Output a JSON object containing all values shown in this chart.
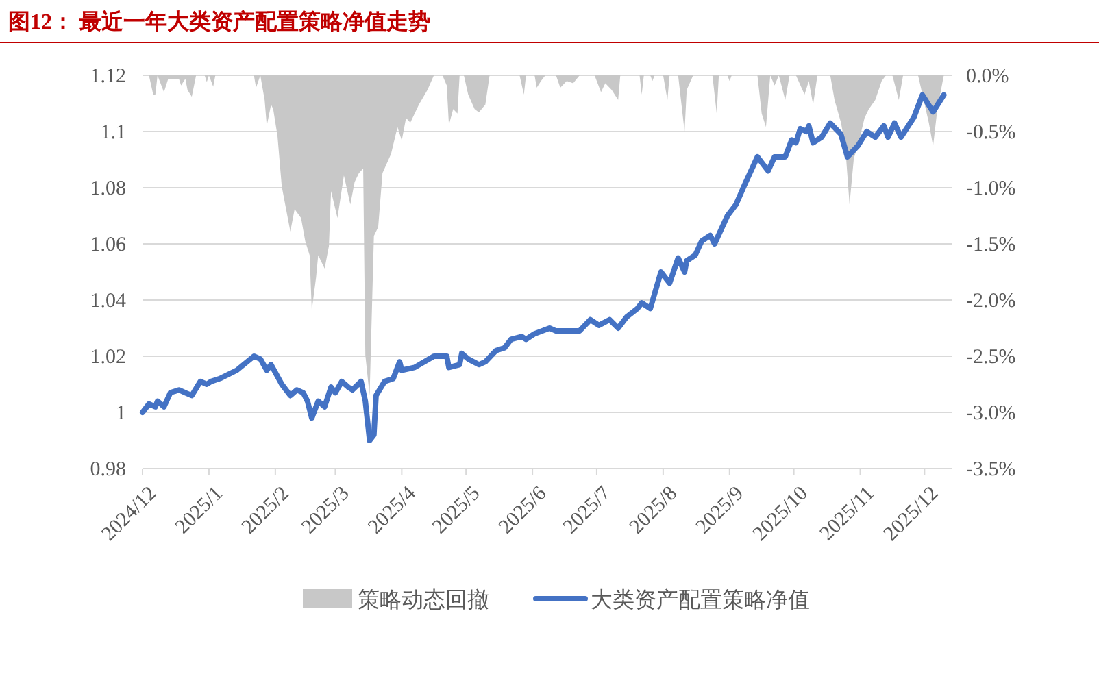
{
  "chart_data": {
    "type": "line",
    "title": "图12：  最近一年大类资产配置策略净值走势",
    "xlim": [
      "2024-12-01",
      "2025-12-14"
    ],
    "xticks": [
      {
        "value": "2024-12-01",
        "label": "2024/12"
      },
      {
        "value": "2025-01-01",
        "label": "2025/1"
      },
      {
        "value": "2025-02-01",
        "label": "2025/2"
      },
      {
        "value": "2025-03-01",
        "label": "2025/3"
      },
      {
        "value": "2025-04-01",
        "label": "2025/4"
      },
      {
        "value": "2025-05-01",
        "label": "2025/5"
      },
      {
        "value": "2025-06-01",
        "label": "2025/6"
      },
      {
        "value": "2025-07-01",
        "label": "2025/7"
      },
      {
        "value": "2025-08-01",
        "label": "2025/8"
      },
      {
        "value": "2025-09-01",
        "label": "2025/9"
      },
      {
        "value": "2025-10-01",
        "label": "2025/10"
      },
      {
        "value": "2025-11-01",
        "label": "2025/11"
      },
      {
        "value": "2025-12-01",
        "label": "2025/12"
      }
    ],
    "ylim": [
      0.98,
      1.12
    ],
    "yticks": [
      0.98,
      1,
      1.02,
      1.04,
      1.06,
      1.08,
      1.1,
      1.12
    ],
    "y2lim": [
      -3.5,
      0
    ],
    "y2ticks": [
      {
        "value": -3.5,
        "label": "-3.5%"
      },
      {
        "value": -3,
        "label": "-3.0%"
      },
      {
        "value": -2.5,
        "label": "-2.5%"
      },
      {
        "value": -2,
        "label": "-2.0%"
      },
      {
        "value": -1.5,
        "label": "-1.5%"
      },
      {
        "value": -1,
        "label": "-1.0%"
      },
      {
        "value": -0.5,
        "label": "-0.5%"
      },
      {
        "value": 0,
        "label": "0.0%"
      }
    ],
    "grid": "y",
    "legend": "bottom",
    "marker": "none",
    "line_style": "solid",
    "series": [
      {
        "name": "策略动态回撤",
        "type": "area",
        "axis": "y2",
        "color": "#c8c8c8",
        "x": [
          "2024-12-01",
          "2024-12-04",
          "2024-12-06",
          "2024-12-07",
          "2024-12-08",
          "2024-12-11",
          "2024-12-13",
          "2024-12-18",
          "2024-12-19",
          "2024-12-21",
          "2024-12-22",
          "2024-12-24",
          "2024-12-26",
          "2024-12-30",
          "2024-12-31",
          "2025-01-01",
          "2025-01-03",
          "2025-01-04",
          "2025-01-22",
          "2025-01-23",
          "2025-01-25",
          "2025-01-27",
          "2025-01-28",
          "2025-01-30",
          "2025-01-31",
          "2025-02-02",
          "2025-02-04",
          "2025-02-08",
          "2025-02-10",
          "2025-02-13",
          "2025-02-15",
          "2025-02-17",
          "2025-02-18",
          "2025-02-20",
          "2025-02-21",
          "2025-02-24",
          "2025-02-26",
          "2025-02-27",
          "2025-03-02",
          "2025-03-05",
          "2025-03-08",
          "2025-03-10",
          "2025-03-12",
          "2025-03-14",
          "2025-03-15",
          "2025-03-17",
          "2025-03-19",
          "2025-03-21",
          "2025-03-23",
          "2025-03-27",
          "2025-03-30",
          "2025-04-01",
          "2025-04-03",
          "2025-04-05",
          "2025-04-09",
          "2025-04-13",
          "2025-04-16",
          "2025-04-20",
          "2025-04-22",
          "2025-04-23",
          "2025-04-25",
          "2025-04-27",
          "2025-04-28",
          "2025-04-30",
          "2025-05-02",
          "2025-05-05",
          "2025-05-07",
          "2025-05-10",
          "2025-05-12",
          "2025-05-26",
          "2025-05-28",
          "2025-05-29",
          "2025-06-02",
          "2025-06-03",
          "2025-06-05",
          "2025-06-07",
          "2025-06-12",
          "2025-06-14",
          "2025-06-17",
          "2025-06-20",
          "2025-06-23",
          "2025-06-30",
          "2025-07-03",
          "2025-07-05",
          "2025-07-08",
          "2025-07-11",
          "2025-07-12",
          "2025-07-21",
          "2025-07-22",
          "2025-07-23",
          "2025-07-26",
          "2025-07-27",
          "2025-07-28",
          "2025-08-01",
          "2025-08-03",
          "2025-08-04",
          "2025-08-08",
          "2025-08-11",
          "2025-08-12",
          "2025-08-15",
          "2025-08-24",
          "2025-08-26",
          "2025-08-27",
          "2025-08-31",
          "2025-09-01",
          "2025-09-02",
          "2025-09-14",
          "2025-09-16",
          "2025-09-18",
          "2025-09-20",
          "2025-09-22",
          "2025-09-24",
          "2025-09-27",
          "2025-09-29",
          "2025-10-02",
          "2025-10-06",
          "2025-10-08",
          "2025-10-10",
          "2025-10-12",
          "2025-10-18",
          "2025-10-20",
          "2025-10-23",
          "2025-10-25",
          "2025-10-27",
          "2025-10-29",
          "2025-10-31",
          "2025-11-03",
          "2025-11-05",
          "2025-11-08",
          "2025-11-11",
          "2025-11-13",
          "2025-11-16",
          "2025-11-19",
          "2025-11-21",
          "2025-11-28",
          "2025-12-03",
          "2025-12-05",
          "2025-12-07",
          "2025-12-10"
        ],
        "values": [
          0,
          0,
          -0.17,
          -0.17,
          0,
          -0.15,
          -0.03,
          -0.03,
          -0.09,
          -0.03,
          -0.13,
          -0.19,
          0,
          0,
          -0.06,
          0,
          -0.1,
          0,
          0,
          -0.11,
          0,
          -0.22,
          -0.45,
          -0.26,
          -0.3,
          -0.54,
          -0.99,
          -1.39,
          -1.19,
          -1.27,
          -1.48,
          -1.6,
          -2.09,
          -1.8,
          -1.6,
          -1.72,
          -1.52,
          -1.03,
          -1.27,
          -0.89,
          -1.15,
          -0.95,
          -0.87,
          -0.83,
          -2.49,
          -2.85,
          -1.43,
          -1.35,
          -0.87,
          -0.7,
          -0.46,
          -0.58,
          -0.38,
          -0.42,
          -0.26,
          -0.13,
          0,
          0,
          -0.09,
          -0.44,
          -0.3,
          -0.34,
          0,
          0,
          -0.17,
          -0.3,
          -0.33,
          -0.26,
          0,
          0,
          -0.17,
          0,
          0,
          -0.11,
          -0.05,
          0,
          0,
          -0.11,
          -0.05,
          -0.07,
          0,
          0,
          -0.15,
          -0.07,
          -0.13,
          -0.22,
          0,
          0,
          -0.17,
          0,
          0,
          -0.05,
          0,
          0,
          -0.22,
          0,
          0,
          -0.5,
          -0.13,
          0,
          0,
          -0.34,
          0,
          0,
          -0.05,
          0,
          0,
          -0.34,
          -0.46,
          0,
          -0.09,
          0,
          -0.22,
          0,
          0,
          -0.17,
          -0.05,
          -0.26,
          0,
          0,
          -0.22,
          -0.42,
          -0.63,
          -1.15,
          -0.74,
          -0.62,
          -0.38,
          -0.3,
          -0.22,
          -0.05,
          0,
          0,
          -0.22,
          0,
          0,
          -0.42,
          -0.63,
          -0.3,
          0
        ]
      },
      {
        "name": "大类资产配置策略净值",
        "color": "#4472c4",
        "x": [
          "2024-12-01",
          "2024-12-04",
          "2024-12-07",
          "2024-12-08",
          "2024-12-11",
          "2024-12-14",
          "2024-12-18",
          "2024-12-21",
          "2024-12-24",
          "2024-12-28",
          "2024-12-31",
          "2025-01-02",
          "2025-01-06",
          "2025-01-14",
          "2025-01-22",
          "2025-01-25",
          "2025-01-28",
          "2025-01-30",
          "2025-02-04",
          "2025-02-08",
          "2025-02-11",
          "2025-02-14",
          "2025-02-16",
          "2025-02-18",
          "2025-02-21",
          "2025-02-24",
          "2025-02-27",
          "2025-03-01",
          "2025-03-04",
          "2025-03-07",
          "2025-03-09",
          "2025-03-13",
          "2025-03-15",
          "2025-03-17",
          "2025-03-19",
          "2025-03-20",
          "2025-03-24",
          "2025-03-28",
          "2025-03-31",
          "2025-04-01",
          "2025-04-07",
          "2025-04-16",
          "2025-04-22",
          "2025-04-23",
          "2025-04-28",
          "2025-04-29",
          "2025-05-02",
          "2025-05-07",
          "2025-05-10",
          "2025-05-15",
          "2025-05-19",
          "2025-05-22",
          "2025-05-27",
          "2025-05-29",
          "2025-06-02",
          "2025-06-09",
          "2025-06-12",
          "2025-06-23",
          "2025-06-28",
          "2025-07-02",
          "2025-07-07",
          "2025-07-11",
          "2025-07-15",
          "2025-07-20",
          "2025-07-22",
          "2025-07-26",
          "2025-07-31",
          "2025-08-04",
          "2025-08-08",
          "2025-08-11",
          "2025-08-12",
          "2025-08-16",
          "2025-08-19",
          "2025-08-23",
          "2025-08-25",
          "2025-08-31",
          "2025-09-04",
          "2025-09-08",
          "2025-09-14",
          "2025-09-16",
          "2025-09-19",
          "2025-09-22",
          "2025-09-27",
          "2025-09-30",
          "2025-10-02",
          "2025-10-04",
          "2025-10-07",
          "2025-10-08",
          "2025-10-10",
          "2025-10-14",
          "2025-10-18",
          "2025-10-23",
          "2025-10-26",
          "2025-10-31",
          "2025-11-04",
          "2025-11-08",
          "2025-11-12",
          "2025-11-14",
          "2025-11-17",
          "2025-11-20",
          "2025-11-26",
          "2025-11-30",
          "2025-12-05",
          "2025-12-10"
        ],
        "values": [
          1.0,
          1.003,
          1.002,
          1.004,
          1.002,
          1.007,
          1.008,
          1.007,
          1.006,
          1.011,
          1.01,
          1.011,
          1.012,
          1.015,
          1.02,
          1.019,
          1.015,
          1.017,
          1.01,
          1.006,
          1.008,
          1.007,
          1.004,
          0.998,
          1.004,
          1.002,
          1.009,
          1.007,
          1.011,
          1.009,
          1.008,
          1.011,
          1.004,
          0.99,
          0.992,
          1.006,
          1.011,
          1.012,
          1.018,
          1.015,
          1.016,
          1.02,
          1.02,
          1.016,
          1.017,
          1.021,
          1.019,
          1.017,
          1.018,
          1.022,
          1.023,
          1.026,
          1.027,
          1.026,
          1.028,
          1.03,
          1.029,
          1.029,
          1.033,
          1.031,
          1.033,
          1.03,
          1.034,
          1.037,
          1.039,
          1.037,
          1.05,
          1.046,
          1.055,
          1.05,
          1.054,
          1.056,
          1.061,
          1.063,
          1.06,
          1.07,
          1.074,
          1.081,
          1.091,
          1.089,
          1.086,
          1.091,
          1.091,
          1.097,
          1.096,
          1.101,
          1.1,
          1.102,
          1.096,
          1.098,
          1.103,
          1.099,
          1.091,
          1.095,
          1.1,
          1.098,
          1.102,
          1.098,
          1.103,
          1.098,
          1.105,
          1.113,
          1.107,
          1.113
        ]
      }
    ]
  }
}
